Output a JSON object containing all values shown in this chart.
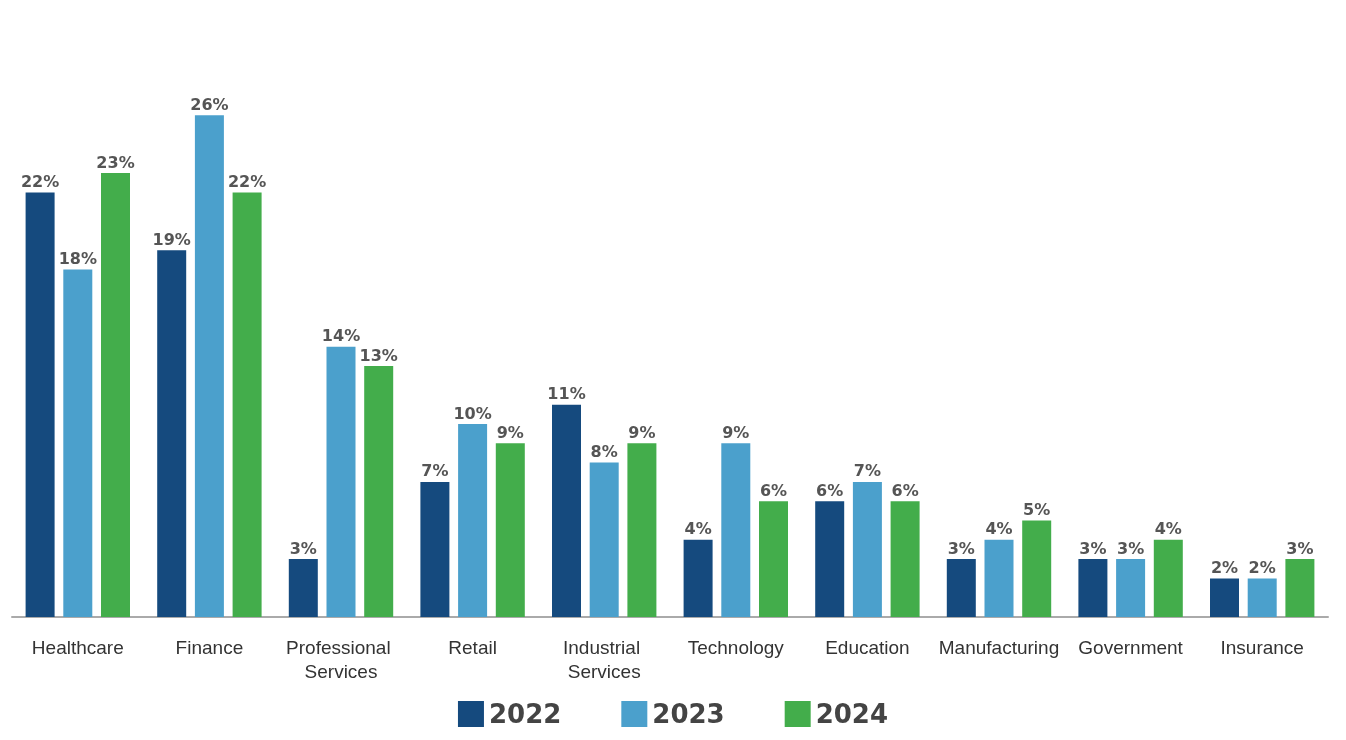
{
  "chart_data": {
    "type": "bar",
    "categories": [
      "Healthcare",
      "Finance",
      "Professional Services",
      "Retail",
      "Industrial Services",
      "Technology",
      "Education",
      "Manufacturing",
      "Government",
      "Insurance"
    ],
    "series": [
      {
        "name": "2022",
        "color": "#154a7e",
        "values": [
          22,
          19,
          3,
          7,
          11,
          4,
          6,
          3,
          3,
          2
        ],
        "value_labels": [
          "22%",
          "19%",
          "3%",
          "7%",
          "11%",
          "4%",
          "6%",
          "3%",
          "3%",
          "2%"
        ]
      },
      {
        "name": "2023",
        "color": "#4ba0cc",
        "values": [
          18,
          26,
          14,
          10,
          8,
          9,
          7,
          4,
          3,
          2
        ],
        "value_labels": [
          "18%",
          "26%",
          "14%",
          "10%",
          "8%",
          "9%",
          "7%",
          "4%",
          "3%",
          "2%"
        ]
      },
      {
        "name": "2024",
        "color": "#43ad4b",
        "values": [
          23,
          22,
          13,
          9,
          9,
          6,
          6,
          5,
          4,
          3
        ],
        "value_labels": [
          "23%",
          "22%",
          "13%",
          "9%",
          "9%",
          "6%",
          "6%",
          "5%",
          "4%",
          "3%"
        ]
      }
    ],
    "grid": false,
    "legend": "bottom",
    "tick_labels": "x"
  }
}
